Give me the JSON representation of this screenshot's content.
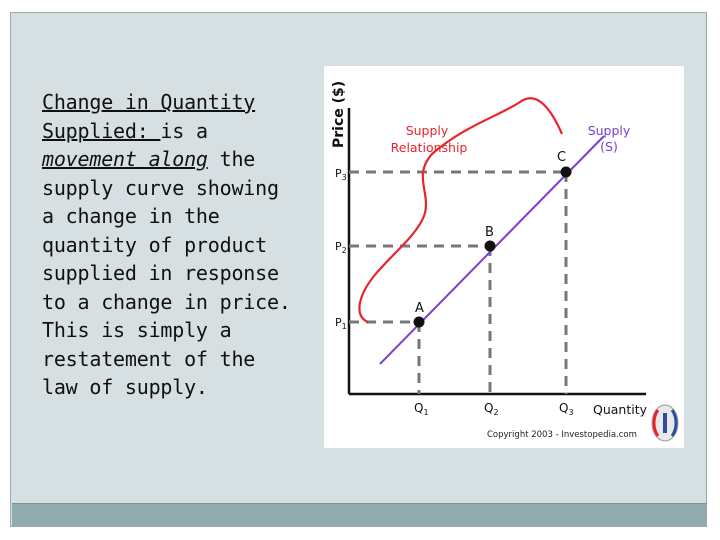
{
  "slide": {
    "text": {
      "heading_line1": "Change in Quantity",
      "heading_line2_u": "Supplied: ",
      "heading_line2_rest": "is a",
      "movement_em": "movement along",
      "rest_line3": " the",
      "rest": "supply curve showing a change in the quantity of product supplied in response to a change in price. This is simply a restatement of the law of supply."
    }
  },
  "diagram": {
    "y_axis_title": "Price ($)",
    "x_axis_title": "Quantity",
    "curve_label_line1": "Supply",
    "curve_label_line2": "(S)",
    "callout_line1": "Supply",
    "callout_line2": "Relationship",
    "copyright": "Copyright 2003 - Investopedia.com",
    "colors": {
      "supply_curve": "#7a3fd1",
      "callout": "#e8242b",
      "guides": "#777777",
      "points": "#111111"
    },
    "points": [
      {
        "label": "A",
        "price_label": "P",
        "price_sub": "1",
        "qty_label": "Q",
        "qty_sub": "1"
      },
      {
        "label": "B",
        "price_label": "P",
        "price_sub": "2",
        "qty_label": "Q",
        "qty_sub": "2"
      },
      {
        "label": "C",
        "price_label": "P",
        "price_sub": "3",
        "qty_label": "Q",
        "qty_sub": "3"
      }
    ]
  }
}
